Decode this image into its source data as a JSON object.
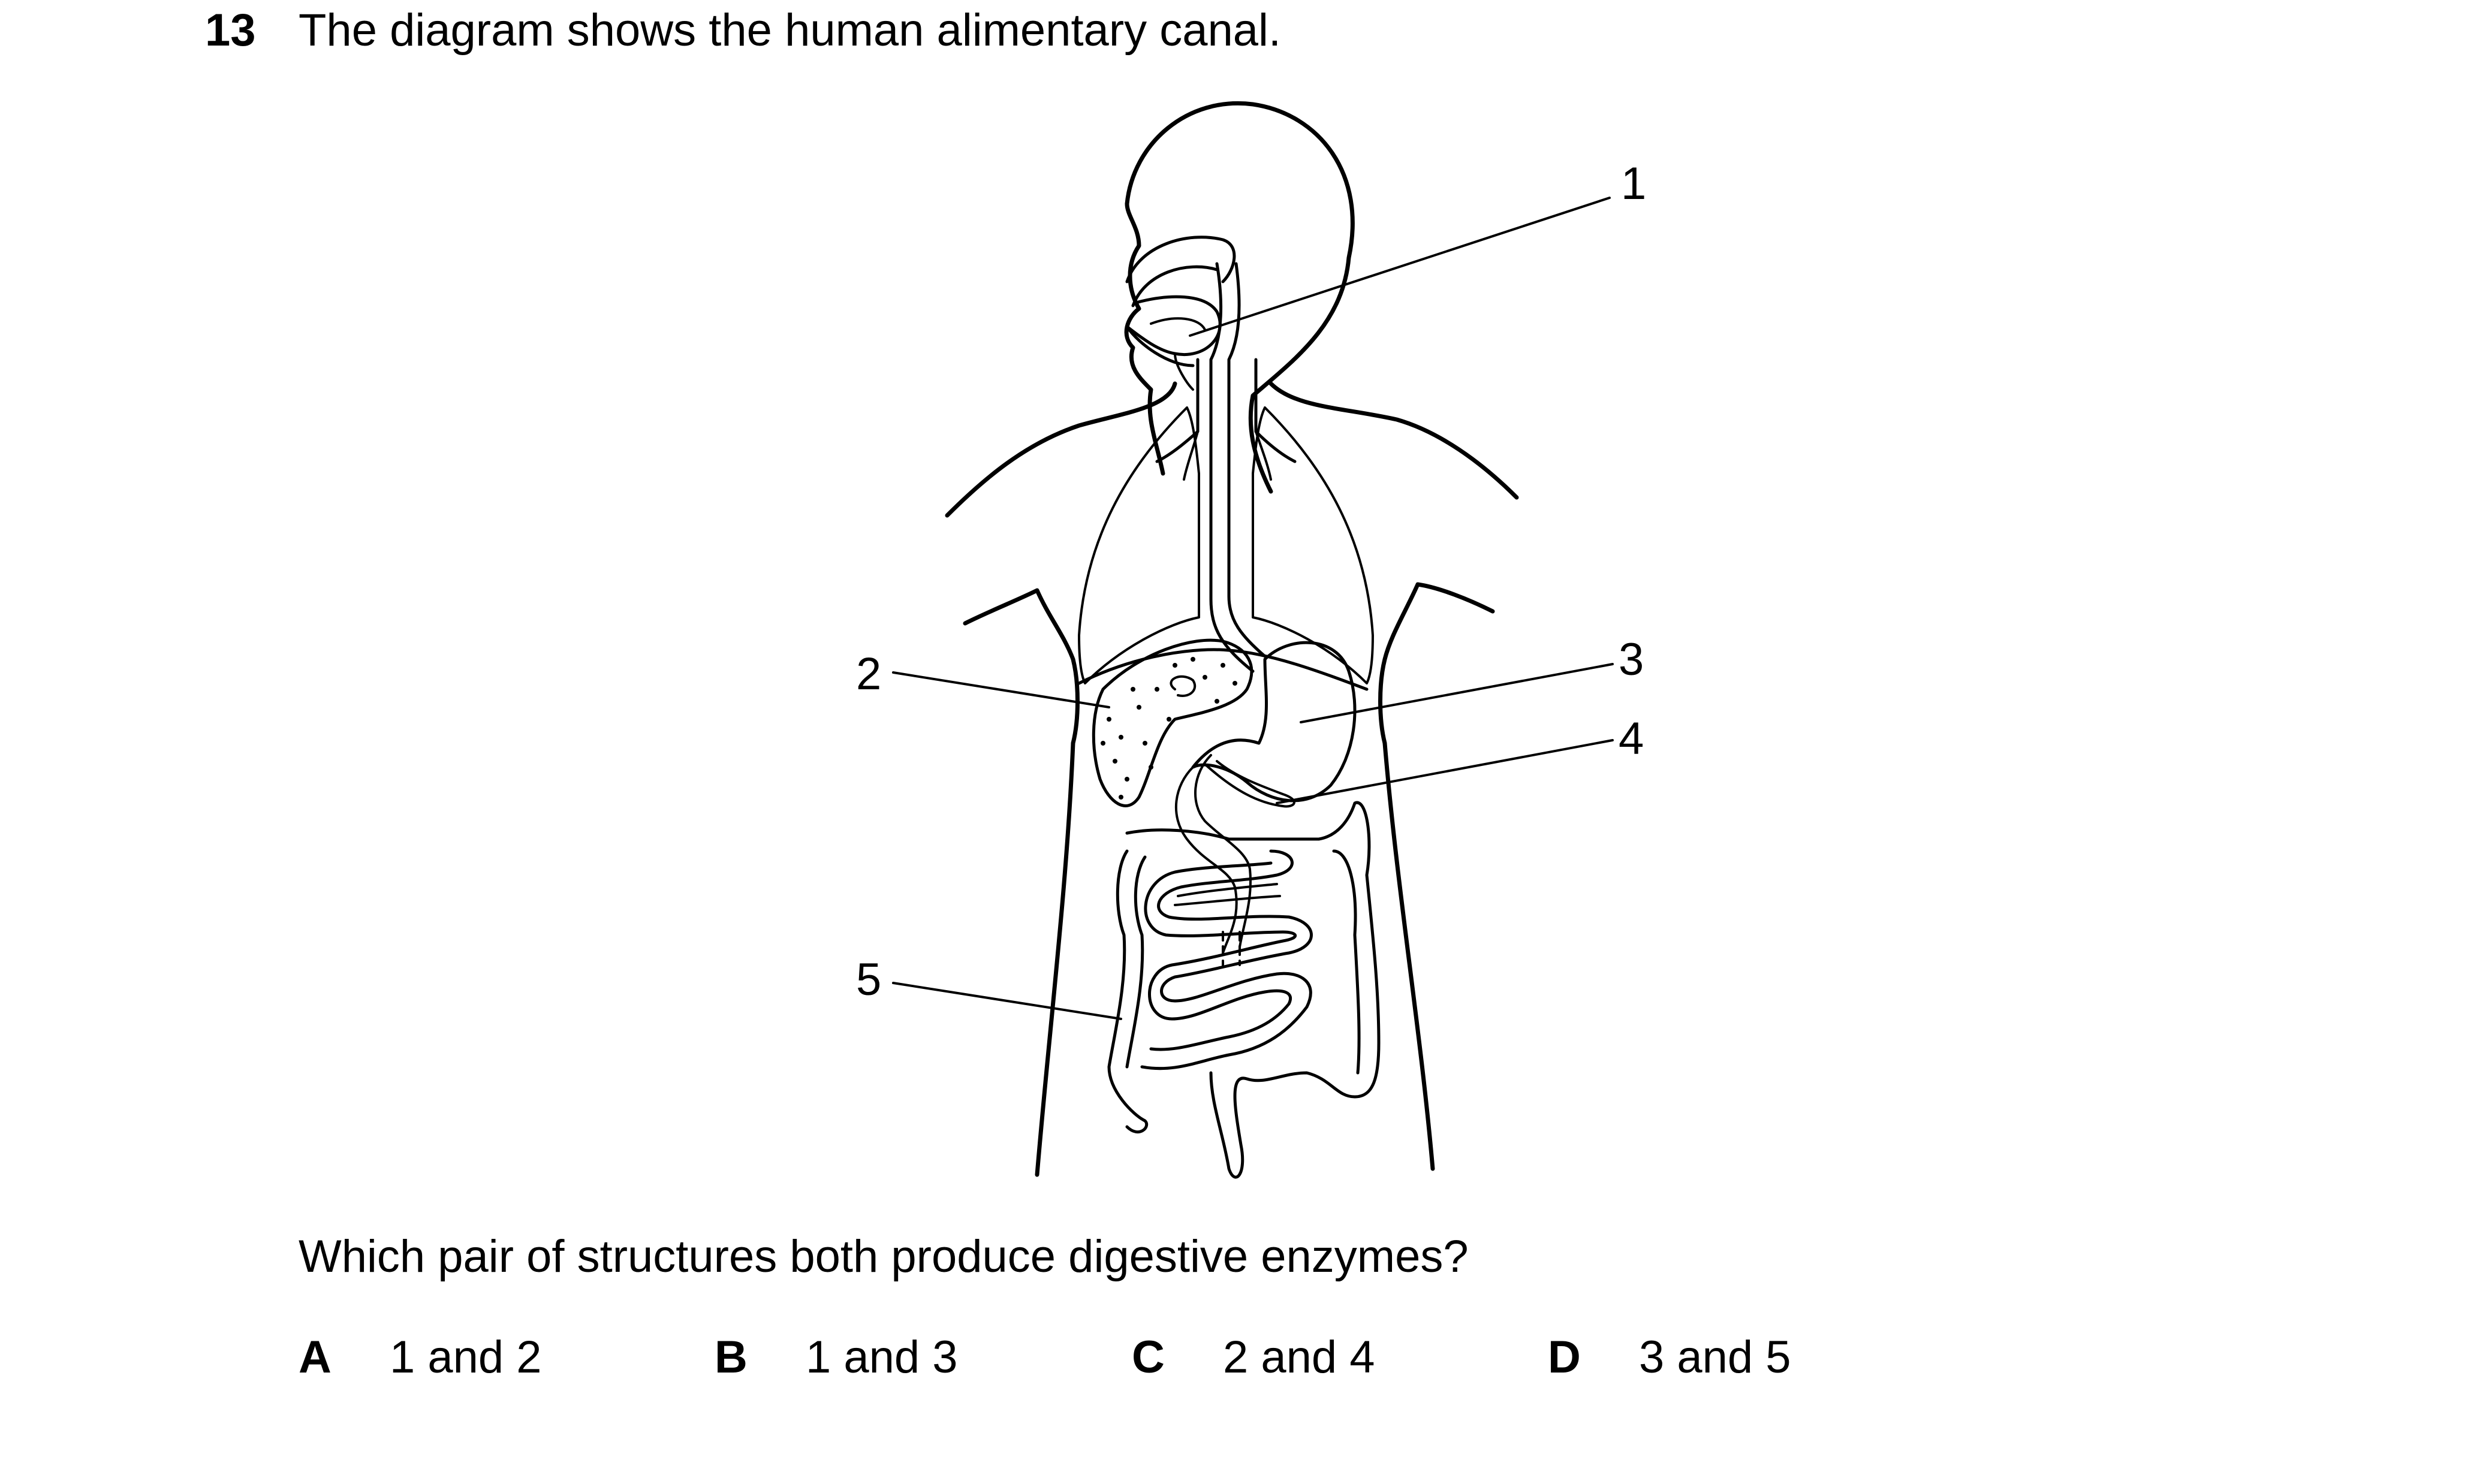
{
  "question": {
    "number": "13",
    "stem": "The diagram shows the human alimentary canal.",
    "prompt": "Which pair of structures both produce digestive enzymes?"
  },
  "diagram": {
    "labels": [
      "1",
      "2",
      "3",
      "4",
      "5"
    ]
  },
  "options": [
    {
      "letter": "A",
      "text": "1 and 2"
    },
    {
      "letter": "B",
      "text": "1 and 3"
    },
    {
      "letter": "C",
      "text": "2 and 4"
    },
    {
      "letter": "D",
      "text": "3 and 5"
    }
  ]
}
